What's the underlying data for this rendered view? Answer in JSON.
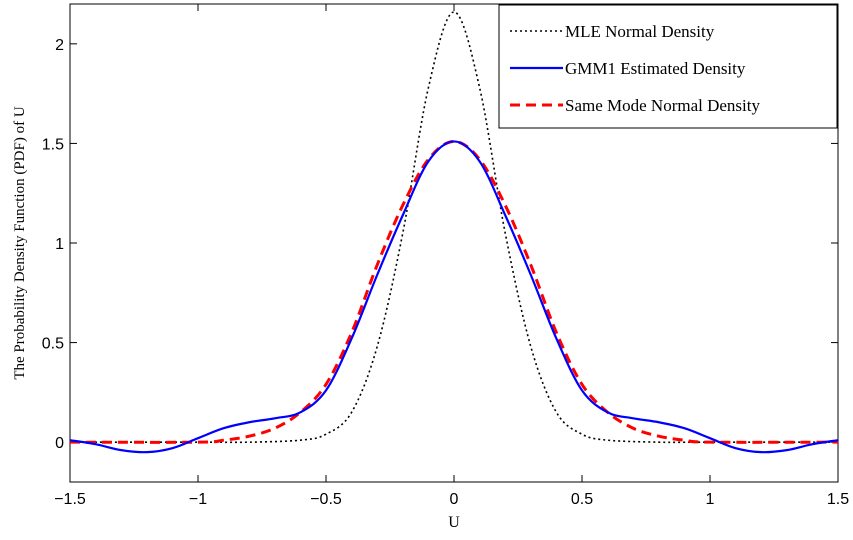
{
  "chart_data": {
    "type": "line",
    "title": "",
    "xlabel": "U",
    "ylabel": "The Probability Density Function (PDF) of U",
    "xlim": [
      -1.5,
      1.5
    ],
    "ylim": [
      -0.2,
      2.2
    ],
    "xticks": [
      -1.5,
      -1,
      -0.5,
      0,
      0.5,
      1,
      1.5
    ],
    "xtick_labels": [
      "−1.5",
      "−1",
      "−0.5",
      "0",
      "0.5",
      "1",
      "1.5"
    ],
    "yticks": [
      0,
      0.5,
      1,
      1.5,
      2
    ],
    "ytick_labels": [
      "0",
      "0.5",
      "1",
      "1.5",
      "2"
    ],
    "grid": false,
    "legend_position": "top-right",
    "series": [
      {
        "name": "MLE Normal Density",
        "color": "#000000",
        "style": "dotted",
        "x": [
          -1.5,
          -1.0,
          -0.8,
          -0.6,
          -0.5,
          -0.4,
          -0.3,
          -0.2,
          -0.1,
          0.0,
          0.1,
          0.2,
          0.3,
          0.4,
          0.5,
          0.6,
          0.8,
          1.0,
          1.5
        ],
        "y": [
          0.0,
          0.0,
          0.0,
          0.01,
          0.04,
          0.15,
          0.48,
          1.05,
          1.78,
          2.16,
          1.78,
          1.05,
          0.48,
          0.15,
          0.04,
          0.01,
          0.0,
          0.0,
          0.0
        ]
      },
      {
        "name": "GMM1 Estimated Density",
        "color": "#0000ff",
        "style": "solid",
        "x": [
          -1.5,
          -1.4,
          -1.3,
          -1.2,
          -1.1,
          -1.0,
          -0.9,
          -0.8,
          -0.7,
          -0.6,
          -0.5,
          -0.4,
          -0.3,
          -0.2,
          -0.1,
          0.0,
          0.1,
          0.2,
          0.3,
          0.4,
          0.5,
          0.6,
          0.7,
          0.8,
          0.9,
          1.0,
          1.1,
          1.2,
          1.3,
          1.4,
          1.5
        ],
        "y": [
          0.01,
          -0.01,
          -0.04,
          -0.05,
          -0.03,
          0.02,
          0.07,
          0.1,
          0.12,
          0.15,
          0.26,
          0.52,
          0.84,
          1.14,
          1.41,
          1.51,
          1.41,
          1.14,
          0.84,
          0.52,
          0.26,
          0.15,
          0.12,
          0.1,
          0.07,
          0.02,
          -0.03,
          -0.05,
          -0.04,
          -0.01,
          0.01
        ]
      },
      {
        "name": "Same Mode Normal Density",
        "color": "#ff0000",
        "style": "dashed",
        "x": [
          -1.5,
          -1.0,
          -0.9,
          -0.8,
          -0.7,
          -0.6,
          -0.5,
          -0.4,
          -0.3,
          -0.2,
          -0.1,
          0.0,
          0.1,
          0.2,
          0.3,
          0.4,
          0.5,
          0.6,
          0.7,
          0.8,
          0.9,
          1.0,
          1.5
        ],
        "y": [
          0.0,
          0.0,
          0.01,
          0.03,
          0.07,
          0.15,
          0.29,
          0.55,
          0.89,
          1.19,
          1.42,
          1.51,
          1.42,
          1.19,
          0.89,
          0.55,
          0.29,
          0.15,
          0.07,
          0.03,
          0.01,
          0.0,
          0.0
        ]
      }
    ]
  }
}
